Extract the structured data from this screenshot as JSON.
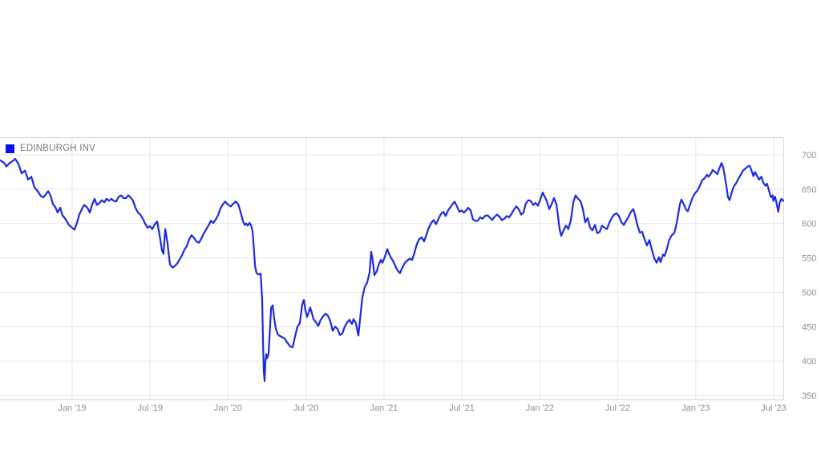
{
  "legend": {
    "label": "EDINBURGH INV",
    "marker_color": "#0a0ff0"
  },
  "colors": {
    "line": "#1b2ae4",
    "grid": "#e6e6e6",
    "border": "#d7d7d7",
    "axis_text": "#8f8f8f",
    "background": "#ffffff"
  },
  "chart_data": {
    "type": "line",
    "title": "",
    "series_name": "EDINBURGH INV",
    "x_unit": "decimal_year",
    "legend_position": "top-left",
    "grid": true,
    "xlim": [
      2018.537,
      2023.561
    ],
    "ylim": [
      344,
      726
    ],
    "y_ticks": [
      700,
      650,
      600,
      550,
      500,
      450,
      400,
      350
    ],
    "x_ticks": [
      {
        "t": 2019.0,
        "label": "Jan '19"
      },
      {
        "t": 2019.5,
        "label": "Jul '19"
      },
      {
        "t": 2020.0,
        "label": "Jan '20"
      },
      {
        "t": 2020.5,
        "label": "Jul '20"
      },
      {
        "t": 2021.0,
        "label": "Jan '21"
      },
      {
        "t": 2021.5,
        "label": "Jul '21"
      },
      {
        "t": 2022.0,
        "label": "Jan '22"
      },
      {
        "t": 2022.5,
        "label": "Jul '22"
      },
      {
        "t": 2023.0,
        "label": "Jan '23"
      },
      {
        "t": 2023.5,
        "label": "Jul '23"
      }
    ],
    "points": [
      [
        2018.537,
        692
      ],
      [
        2018.553,
        690
      ],
      [
        2018.568,
        687
      ],
      [
        2018.578,
        683
      ],
      [
        2018.599,
        688
      ],
      [
        2018.619,
        691
      ],
      [
        2018.635,
        694
      ],
      [
        2018.655,
        687
      ],
      [
        2018.676,
        673
      ],
      [
        2018.697,
        677
      ],
      [
        2018.717,
        664
      ],
      [
        2018.738,
        668
      ],
      [
        2018.758,
        653
      ],
      [
        2018.779,
        647
      ],
      [
        2018.799,
        640
      ],
      [
        2018.815,
        638
      ],
      [
        2018.83,
        642
      ],
      [
        2018.846,
        647
      ],
      [
        2018.861,
        641
      ],
      [
        2018.877,
        628
      ],
      [
        2018.892,
        624
      ],
      [
        2018.907,
        616
      ],
      [
        2018.923,
        623
      ],
      [
        2018.938,
        612
      ],
      [
        2018.959,
        606
      ],
      [
        2018.979,
        598
      ],
      [
        2019.0,
        594
      ],
      [
        2019.015,
        591
      ],
      [
        2019.031,
        601
      ],
      [
        2019.046,
        613
      ],
      [
        2019.062,
        621
      ],
      [
        2019.077,
        627
      ],
      [
        2019.093,
        624
      ],
      [
        2019.103,
        621
      ],
      [
        2019.113,
        616
      ],
      [
        2019.129,
        628
      ],
      [
        2019.144,
        636
      ],
      [
        2019.159,
        627
      ],
      [
        2019.175,
        630
      ],
      [
        2019.19,
        634
      ],
      [
        2019.206,
        631
      ],
      [
        2019.221,
        636
      ],
      [
        2019.237,
        633
      ],
      [
        2019.252,
        636
      ],
      [
        2019.267,
        633
      ],
      [
        2019.283,
        632
      ],
      [
        2019.298,
        639
      ],
      [
        2019.314,
        641
      ],
      [
        2019.329,
        637
      ],
      [
        2019.345,
        637
      ],
      [
        2019.36,
        641
      ],
      [
        2019.375,
        638
      ],
      [
        2019.391,
        633
      ],
      [
        2019.406,
        623
      ],
      [
        2019.422,
        616
      ],
      [
        2019.437,
        613
      ],
      [
        2019.453,
        607
      ],
      [
        2019.468,
        600
      ],
      [
        2019.483,
        594
      ],
      [
        2019.499,
        596
      ],
      [
        2019.514,
        592
      ],
      [
        2019.53,
        599
      ],
      [
        2019.545,
        603
      ],
      [
        2019.561,
        583
      ],
      [
        2019.576,
        561
      ],
      [
        2019.586,
        556
      ],
      [
        2019.597,
        592
      ],
      [
        2019.612,
        571
      ],
      [
        2019.627,
        541
      ],
      [
        2019.643,
        536
      ],
      [
        2019.658,
        538
      ],
      [
        2019.674,
        542
      ],
      [
        2019.689,
        548
      ],
      [
        2019.705,
        554
      ],
      [
        2019.72,
        562
      ],
      [
        2019.735,
        567
      ],
      [
        2019.751,
        577
      ],
      [
        2019.766,
        583
      ],
      [
        2019.782,
        579
      ],
      [
        2019.797,
        574
      ],
      [
        2019.813,
        572
      ],
      [
        2019.828,
        578
      ],
      [
        2019.843,
        585
      ],
      [
        2019.859,
        591
      ],
      [
        2019.874,
        597
      ],
      [
        2019.89,
        604
      ],
      [
        2019.905,
        601
      ],
      [
        2019.921,
        606
      ],
      [
        2019.936,
        612
      ],
      [
        2019.951,
        622
      ],
      [
        2019.967,
        628
      ],
      [
        2019.982,
        632
      ],
      [
        2019.993,
        629
      ],
      [
        2020.003,
        627
      ],
      [
        2020.018,
        625
      ],
      [
        2020.034,
        629
      ],
      [
        2020.049,
        632
      ],
      [
        2020.065,
        628
      ],
      [
        2020.08,
        617
      ],
      [
        2020.095,
        604
      ],
      [
        2020.106,
        598
      ],
      [
        2020.116,
        600
      ],
      [
        2020.126,
        597
      ],
      [
        2020.137,
        601
      ],
      [
        2020.147,
        598
      ],
      [
        2020.157,
        589
      ],
      [
        2020.162,
        573
      ],
      [
        2020.168,
        556
      ],
      [
        2020.173,
        538
      ],
      [
        2020.183,
        528
      ],
      [
        2020.193,
        526
      ],
      [
        2020.204,
        527
      ],
      [
        2020.209,
        527
      ],
      [
        2020.219,
        490
      ],
      [
        2020.224,
        430
      ],
      [
        2020.229,
        385
      ],
      [
        2020.234,
        371
      ],
      [
        2020.24,
        400
      ],
      [
        2020.245,
        410
      ],
      [
        2020.25,
        404
      ],
      [
        2020.26,
        411
      ],
      [
        2020.271,
        455
      ],
      [
        2020.276,
        477
      ],
      [
        2020.286,
        481
      ],
      [
        2020.296,
        462
      ],
      [
        2020.306,
        447
      ],
      [
        2020.317,
        440
      ],
      [
        2020.327,
        437
      ],
      [
        2020.337,
        436
      ],
      [
        2020.353,
        434
      ],
      [
        2020.363,
        433
      ],
      [
        2020.373,
        429
      ],
      [
        2020.383,
        426
      ],
      [
        2020.399,
        421
      ],
      [
        2020.414,
        420
      ],
      [
        2020.43,
        436
      ],
      [
        2020.445,
        450
      ],
      [
        2020.46,
        455
      ],
      [
        2020.476,
        482
      ],
      [
        2020.486,
        489
      ],
      [
        2020.496,
        474
      ],
      [
        2020.507,
        464
      ],
      [
        2020.517,
        471
      ],
      [
        2020.527,
        478
      ],
      [
        2020.537,
        470
      ],
      [
        2020.548,
        461
      ],
      [
        2020.558,
        458
      ],
      [
        2020.568,
        455
      ],
      [
        2020.579,
        451
      ],
      [
        2020.594,
        460
      ],
      [
        2020.609,
        465
      ],
      [
        2020.625,
        469
      ],
      [
        2020.64,
        466
      ],
      [
        2020.656,
        458
      ],
      [
        2020.671,
        444
      ],
      [
        2020.687,
        450
      ],
      [
        2020.702,
        447
      ],
      [
        2020.717,
        438
      ],
      [
        2020.733,
        440
      ],
      [
        2020.748,
        450
      ],
      [
        2020.764,
        456
      ],
      [
        2020.779,
        460
      ],
      [
        2020.795,
        454
      ],
      [
        2020.805,
        461
      ],
      [
        2020.82,
        455
      ],
      [
        2020.836,
        437
      ],
      [
        2020.851,
        470
      ],
      [
        2020.861,
        492
      ],
      [
        2020.877,
        508
      ],
      [
        2020.892,
        514
      ],
      [
        2020.908,
        529
      ],
      [
        2020.918,
        559
      ],
      [
        2020.928,
        546
      ],
      [
        2020.939,
        525
      ],
      [
        2020.954,
        531
      ],
      [
        2020.964,
        539
      ],
      [
        2020.98,
        547
      ],
      [
        2020.99,
        543
      ],
      [
        2021.005,
        551
      ],
      [
        2021.021,
        563
      ],
      [
        2021.031,
        557
      ],
      [
        2021.046,
        550
      ],
      [
        2021.062,
        544
      ],
      [
        2021.077,
        536
      ],
      [
        2021.093,
        530
      ],
      [
        2021.103,
        528
      ],
      [
        2021.118,
        536
      ],
      [
        2021.134,
        543
      ],
      [
        2021.149,
        546
      ],
      [
        2021.165,
        549
      ],
      [
        2021.18,
        547
      ],
      [
        2021.195,
        557
      ],
      [
        2021.211,
        570
      ],
      [
        2021.226,
        577
      ],
      [
        2021.242,
        580
      ],
      [
        2021.257,
        574
      ],
      [
        2021.273,
        584
      ],
      [
        2021.288,
        594
      ],
      [
        2021.303,
        601
      ],
      [
        2021.319,
        605
      ],
      [
        2021.334,
        599
      ],
      [
        2021.35,
        607
      ],
      [
        2021.365,
        614
      ],
      [
        2021.381,
        617
      ],
      [
        2021.396,
        611
      ],
      [
        2021.411,
        619
      ],
      [
        2021.427,
        624
      ],
      [
        2021.442,
        629
      ],
      [
        2021.453,
        632
      ],
      [
        2021.468,
        625
      ],
      [
        2021.484,
        617
      ],
      [
        2021.499,
        619
      ],
      [
        2021.514,
        616
      ],
      [
        2021.53,
        620
      ],
      [
        2021.54,
        623
      ],
      [
        2021.556,
        619
      ],
      [
        2021.571,
        606
      ],
      [
        2021.586,
        604
      ],
      [
        2021.602,
        604
      ],
      [
        2021.617,
        609
      ],
      [
        2021.633,
        607
      ],
      [
        2021.648,
        611
      ],
      [
        2021.664,
        612
      ],
      [
        2021.679,
        609
      ],
      [
        2021.694,
        605
      ],
      [
        2021.71,
        610
      ],
      [
        2021.725,
        613
      ],
      [
        2021.741,
        610
      ],
      [
        2021.756,
        605
      ],
      [
        2021.772,
        607
      ],
      [
        2021.787,
        611
      ],
      [
        2021.802,
        609
      ],
      [
        2021.818,
        614
      ],
      [
        2021.833,
        620
      ],
      [
        2021.849,
        625
      ],
      [
        2021.864,
        621
      ],
      [
        2021.88,
        613
      ],
      [
        2021.895,
        616
      ],
      [
        2021.91,
        629
      ],
      [
        2021.926,
        634
      ],
      [
        2021.941,
        633
      ],
      [
        2021.957,
        627
      ],
      [
        2021.972,
        630
      ],
      [
        2021.988,
        626
      ],
      [
        2022.003,
        635
      ],
      [
        2022.018,
        645
      ],
      [
        2022.029,
        640
      ],
      [
        2022.044,
        633
      ],
      [
        2022.06,
        621
      ],
      [
        2022.075,
        628
      ],
      [
        2022.091,
        637
      ],
      [
        2022.106,
        628
      ],
      [
        2022.116,
        611
      ],
      [
        2022.127,
        592
      ],
      [
        2022.137,
        582
      ],
      [
        2022.152,
        590
      ],
      [
        2022.168,
        597
      ],
      [
        2022.183,
        592
      ],
      [
        2022.199,
        605
      ],
      [
        2022.214,
        631
      ],
      [
        2022.229,
        641
      ],
      [
        2022.245,
        636
      ],
      [
        2022.26,
        633
      ],
      [
        2022.276,
        621
      ],
      [
        2022.291,
        602
      ],
      [
        2022.307,
        608
      ],
      [
        2022.322,
        594
      ],
      [
        2022.337,
        590
      ],
      [
        2022.353,
        598
      ],
      [
        2022.368,
        586
      ],
      [
        2022.384,
        588
      ],
      [
        2022.399,
        597
      ],
      [
        2022.415,
        594
      ],
      [
        2022.43,
        592
      ],
      [
        2022.445,
        601
      ],
      [
        2022.461,
        608
      ],
      [
        2022.476,
        613
      ],
      [
        2022.492,
        615
      ],
      [
        2022.507,
        611
      ],
      [
        2022.523,
        602
      ],
      [
        2022.538,
        598
      ],
      [
        2022.553,
        604
      ],
      [
        2022.569,
        610
      ],
      [
        2022.584,
        617
      ],
      [
        2022.6,
        621
      ],
      [
        2022.61,
        613
      ],
      [
        2022.625,
        598
      ],
      [
        2022.641,
        587
      ],
      [
        2022.656,
        588
      ],
      [
        2022.672,
        577
      ],
      [
        2022.687,
        568
      ],
      [
        2022.703,
        576
      ],
      [
        2022.718,
        562
      ],
      [
        2022.733,
        550
      ],
      [
        2022.749,
        543
      ],
      [
        2022.764,
        551
      ],
      [
        2022.774,
        544
      ],
      [
        2022.79,
        555
      ],
      [
        2022.8,
        553
      ],
      [
        2022.815,
        563
      ],
      [
        2022.831,
        577
      ],
      [
        2022.846,
        583
      ],
      [
        2022.862,
        586
      ],
      [
        2022.877,
        600
      ],
      [
        2022.898,
        628
      ],
      [
        2022.908,
        635
      ],
      [
        2022.923,
        628
      ],
      [
        2022.939,
        620
      ],
      [
        2022.949,
        618
      ],
      [
        2022.964,
        628
      ],
      [
        2022.98,
        638
      ],
      [
        2022.995,
        644
      ],
      [
        2023.011,
        648
      ],
      [
        2023.026,
        655
      ],
      [
        2023.041,
        663
      ],
      [
        2023.057,
        666
      ],
      [
        2023.072,
        671
      ],
      [
        2023.082,
        668
      ],
      [
        2023.098,
        673
      ],
      [
        2023.108,
        678
      ],
      [
        2023.124,
        675
      ],
      [
        2023.139,
        672
      ],
      [
        2023.149,
        679
      ],
      [
        2023.165,
        688
      ],
      [
        2023.175,
        683
      ],
      [
        2023.185,
        670
      ],
      [
        2023.196,
        655
      ],
      [
        2023.206,
        639
      ],
      [
        2023.216,
        634
      ],
      [
        2023.226,
        641
      ],
      [
        2023.237,
        650
      ],
      [
        2023.247,
        655
      ],
      [
        2023.257,
        658
      ],
      [
        2023.273,
        665
      ],
      [
        2023.288,
        671
      ],
      [
        2023.303,
        677
      ],
      [
        2023.319,
        680
      ],
      [
        2023.334,
        683
      ],
      [
        2023.345,
        684
      ],
      [
        2023.355,
        679
      ],
      [
        2023.37,
        669
      ],
      [
        2023.38,
        675
      ],
      [
        2023.396,
        668
      ],
      [
        2023.406,
        664
      ],
      [
        2023.421,
        668
      ],
      [
        2023.432,
        660
      ],
      [
        2023.447,
        655
      ],
      [
        2023.457,
        658
      ],
      [
        2023.473,
        645
      ],
      [
        2023.483,
        638
      ],
      [
        2023.493,
        641
      ],
      [
        2023.498,
        633
      ],
      [
        2023.509,
        639
      ],
      [
        2023.519,
        629
      ],
      [
        2023.529,
        617
      ],
      [
        2023.539,
        631
      ],
      [
        2023.55,
        636
      ],
      [
        2023.561,
        633
      ]
    ]
  }
}
